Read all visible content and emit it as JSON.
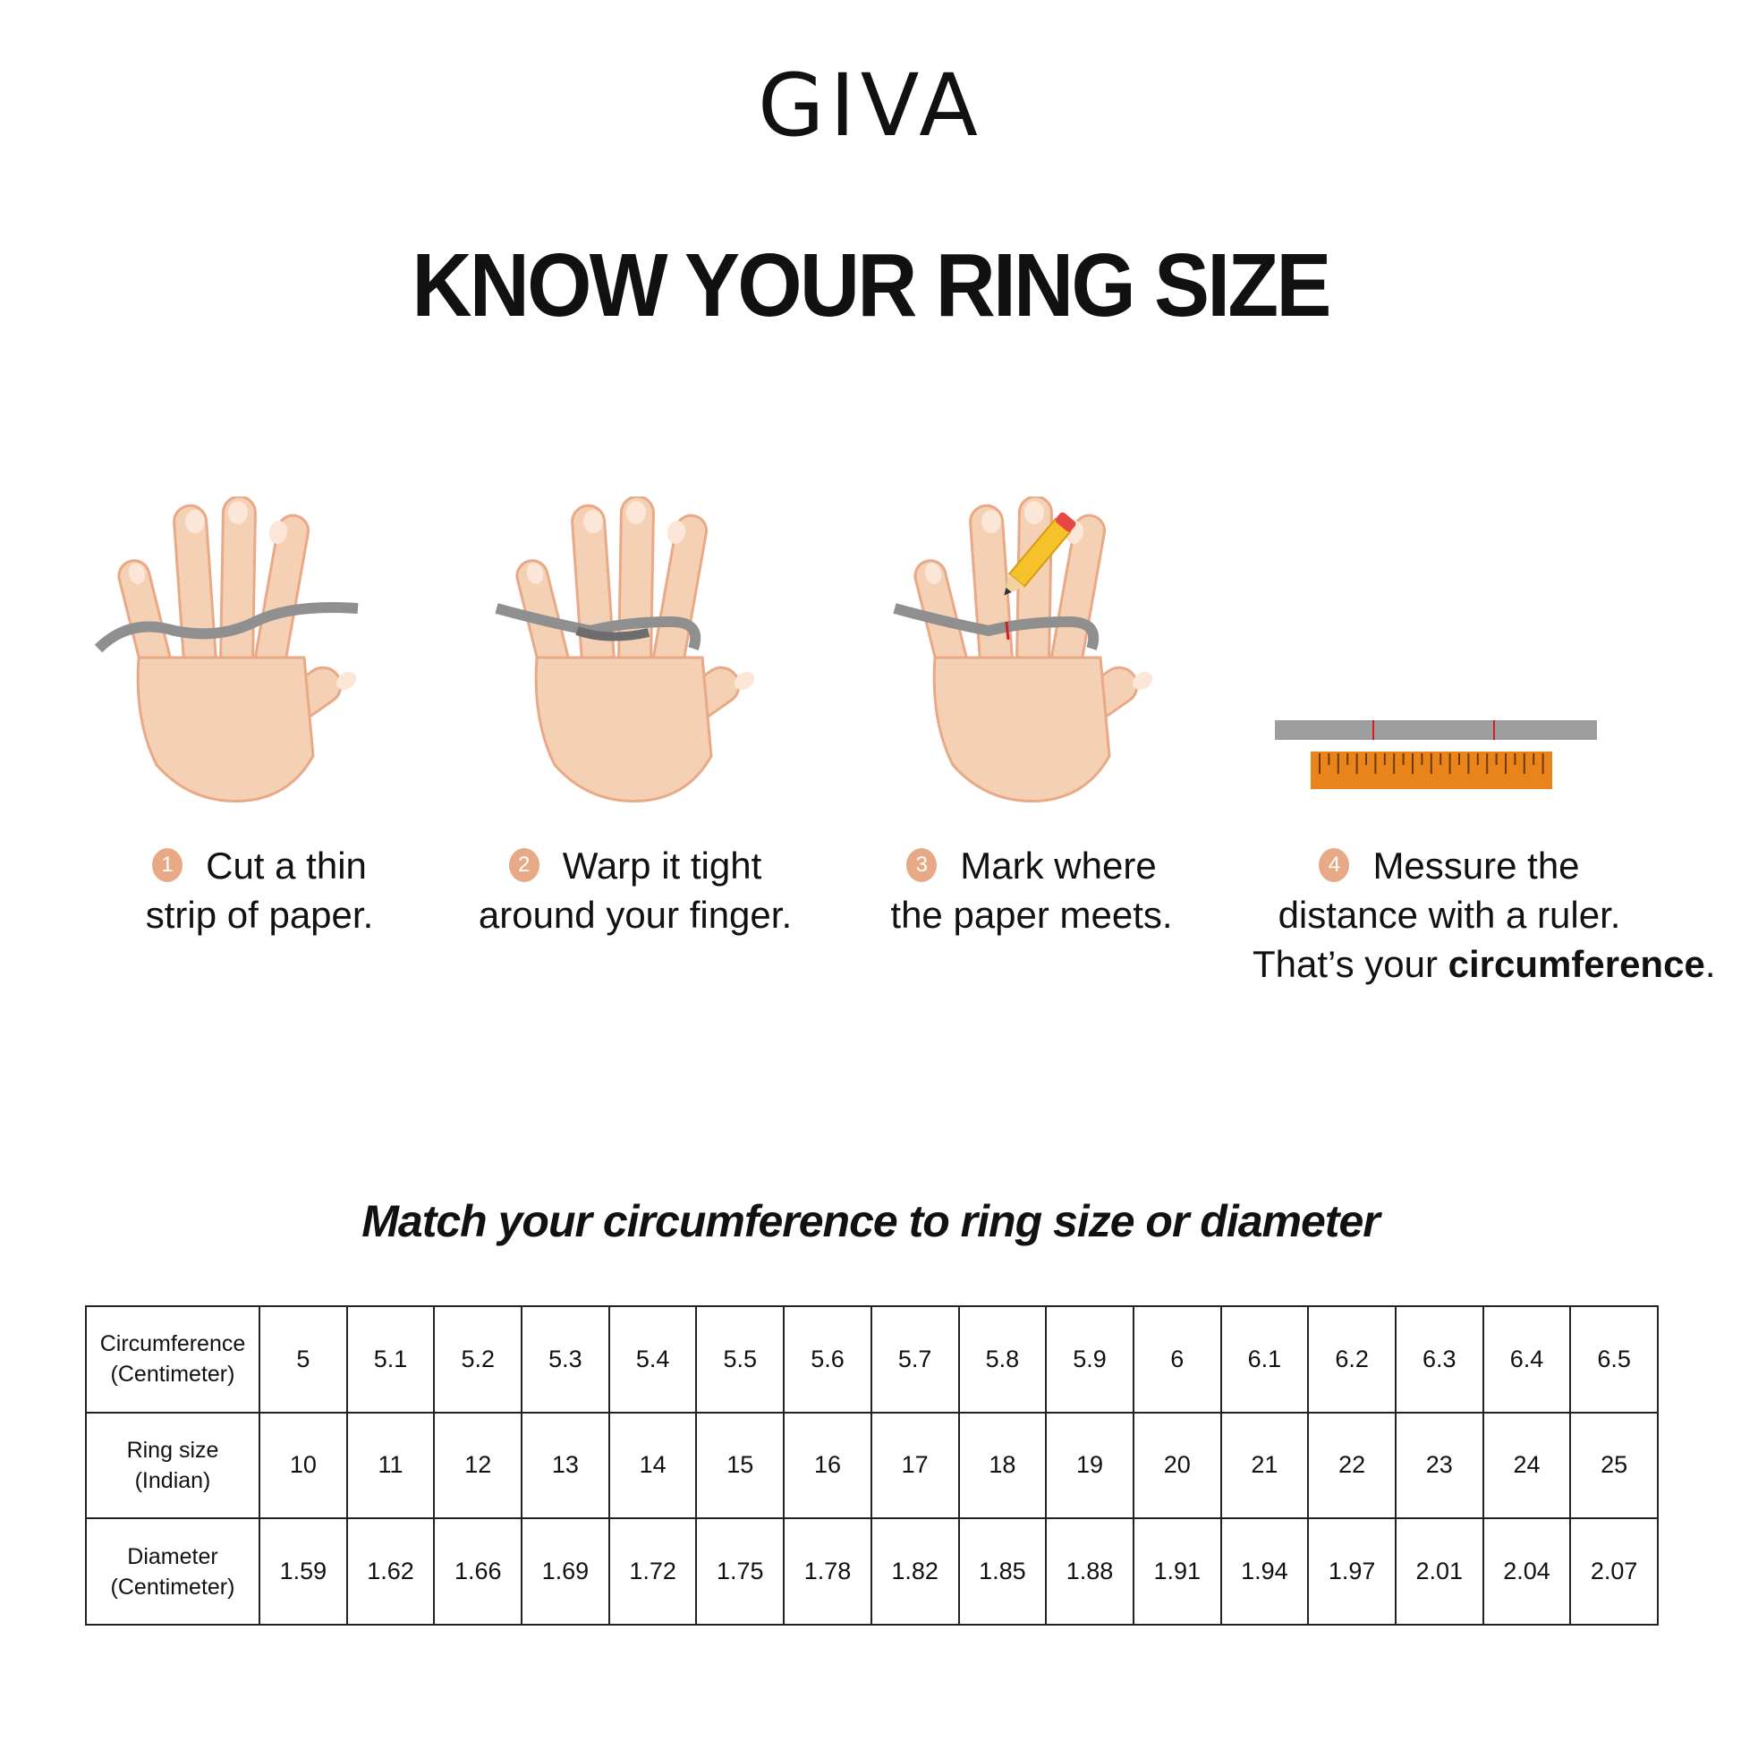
{
  "brand": {
    "logo_text": "GIVA"
  },
  "title": "KNOW YOUR RING SIZE",
  "colors": {
    "skin": "#f4d0b5",
    "skin_shadow": "#e9a987",
    "paper_strip": "#8f8f8f",
    "badge": "#e8a987",
    "ruler": "#e8841a",
    "mark": "#d62020"
  },
  "steps": [
    {
      "number": "1",
      "line1": "Cut a thin",
      "line2": "strip of paper.",
      "icon": "hand-with-paper-strip-icon"
    },
    {
      "number": "2",
      "line1": "Warp it tight",
      "line2": "around your finger.",
      "icon": "hand-wrapped-finger-icon"
    },
    {
      "number": "3",
      "line1": "Mark where",
      "line2": "the paper meets.",
      "icon": "hand-with-pencil-icon"
    },
    {
      "number": "4",
      "line1": "Messure the",
      "line2": "distance with a ruler.",
      "line3_prefix": "That’s your ",
      "line3_bold": "circumference",
      "line3_suffix": ".",
      "icon": "ruler-with-paper-icon"
    }
  ],
  "subtitle": "Match your circumference to ring size or diameter",
  "table": {
    "rows": [
      {
        "label1": "Circumference",
        "label2": "(Centimeter)",
        "values": [
          "5",
          "5.1",
          "5.2",
          "5.3",
          "5.4",
          "5.5",
          "5.6",
          "5.7",
          "5.8",
          "5.9",
          "6",
          "6.1",
          "6.2",
          "6.3",
          "6.4",
          "6.5"
        ]
      },
      {
        "label1": "Ring size",
        "label2": "(Indian)",
        "values": [
          "10",
          "11",
          "12",
          "13",
          "14",
          "15",
          "16",
          "17",
          "18",
          "19",
          "20",
          "21",
          "22",
          "23",
          "24",
          "25"
        ]
      },
      {
        "label1": "Diameter",
        "label2": "(Centimeter)",
        "values": [
          "1.59",
          "1.62",
          "1.66",
          "1.69",
          "1.72",
          "1.75",
          "1.78",
          "1.82",
          "1.85",
          "1.88",
          "1.91",
          "1.94",
          "1.97",
          "2.01",
          "2.04",
          "2.07"
        ]
      }
    ]
  }
}
